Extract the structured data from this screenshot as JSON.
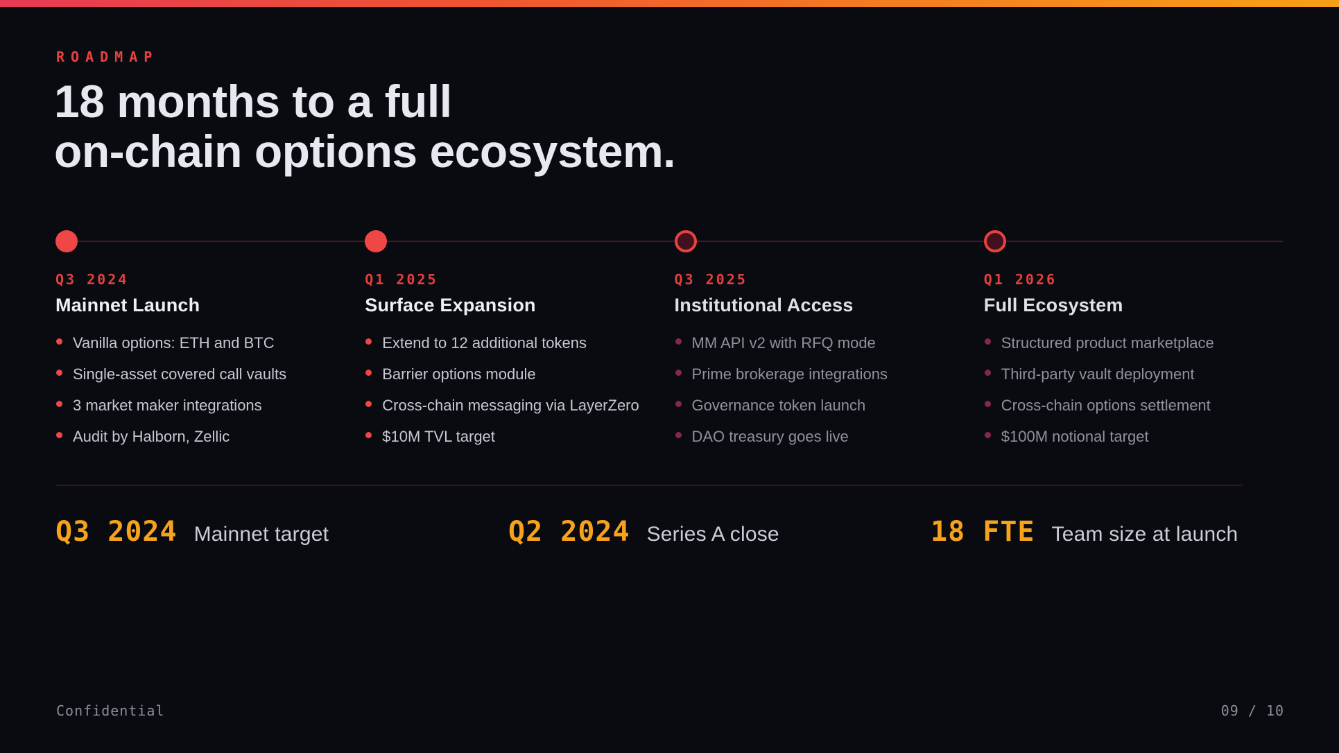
{
  "slide": {
    "eyebrow": "ROADMAP",
    "title_line1": "18 months to a full",
    "title_line2": "on-chain options ecosystem.",
    "footer_left": "Confidential",
    "footer_right": "09 / 10"
  },
  "milestones": [
    {
      "date": "Q3 2024",
      "title": "Mainnet Launch",
      "status": "done",
      "items": [
        "Vanilla options: ETH and BTC",
        "Single-asset covered call vaults",
        "3 market maker integrations",
        "Audit by Halborn, Zellic"
      ]
    },
    {
      "date": "Q1 2025",
      "title": "Surface Expansion",
      "status": "done",
      "items": [
        "Extend to 12 additional tokens",
        "Barrier options module",
        "Cross-chain messaging via LayerZero",
        "$10M TVL target"
      ]
    },
    {
      "date": "Q3 2025",
      "title": "Institutional Access",
      "status": "future",
      "items": [
        "MM API v2 with RFQ mode",
        "Prime brokerage integrations",
        "Governance token launch",
        "DAO treasury goes live"
      ]
    },
    {
      "date": "Q1 2026",
      "title": "Full Ecosystem",
      "status": "future",
      "items": [
        "Structured product marketplace",
        "Third-party vault deployment",
        "Cross-chain options settlement",
        "$100M notional target"
      ]
    }
  ],
  "stats": [
    {
      "value": "Q3 2024",
      "label": "Mainnet target"
    },
    {
      "value": "Q2 2024",
      "label": "Series A close"
    },
    {
      "value": "18 FTE",
      "label": "Team size at launch"
    }
  ],
  "colors": {
    "background": "#0a0b11",
    "accent_red": "#e8423e",
    "dot_filled": "#ef4746",
    "dot_hollow_fill": "#42101f",
    "timeline_line": "#471820",
    "stat_orange": "#f6a21b",
    "gradient_left": "#e73a56",
    "gradient_right": "#f6a016"
  }
}
